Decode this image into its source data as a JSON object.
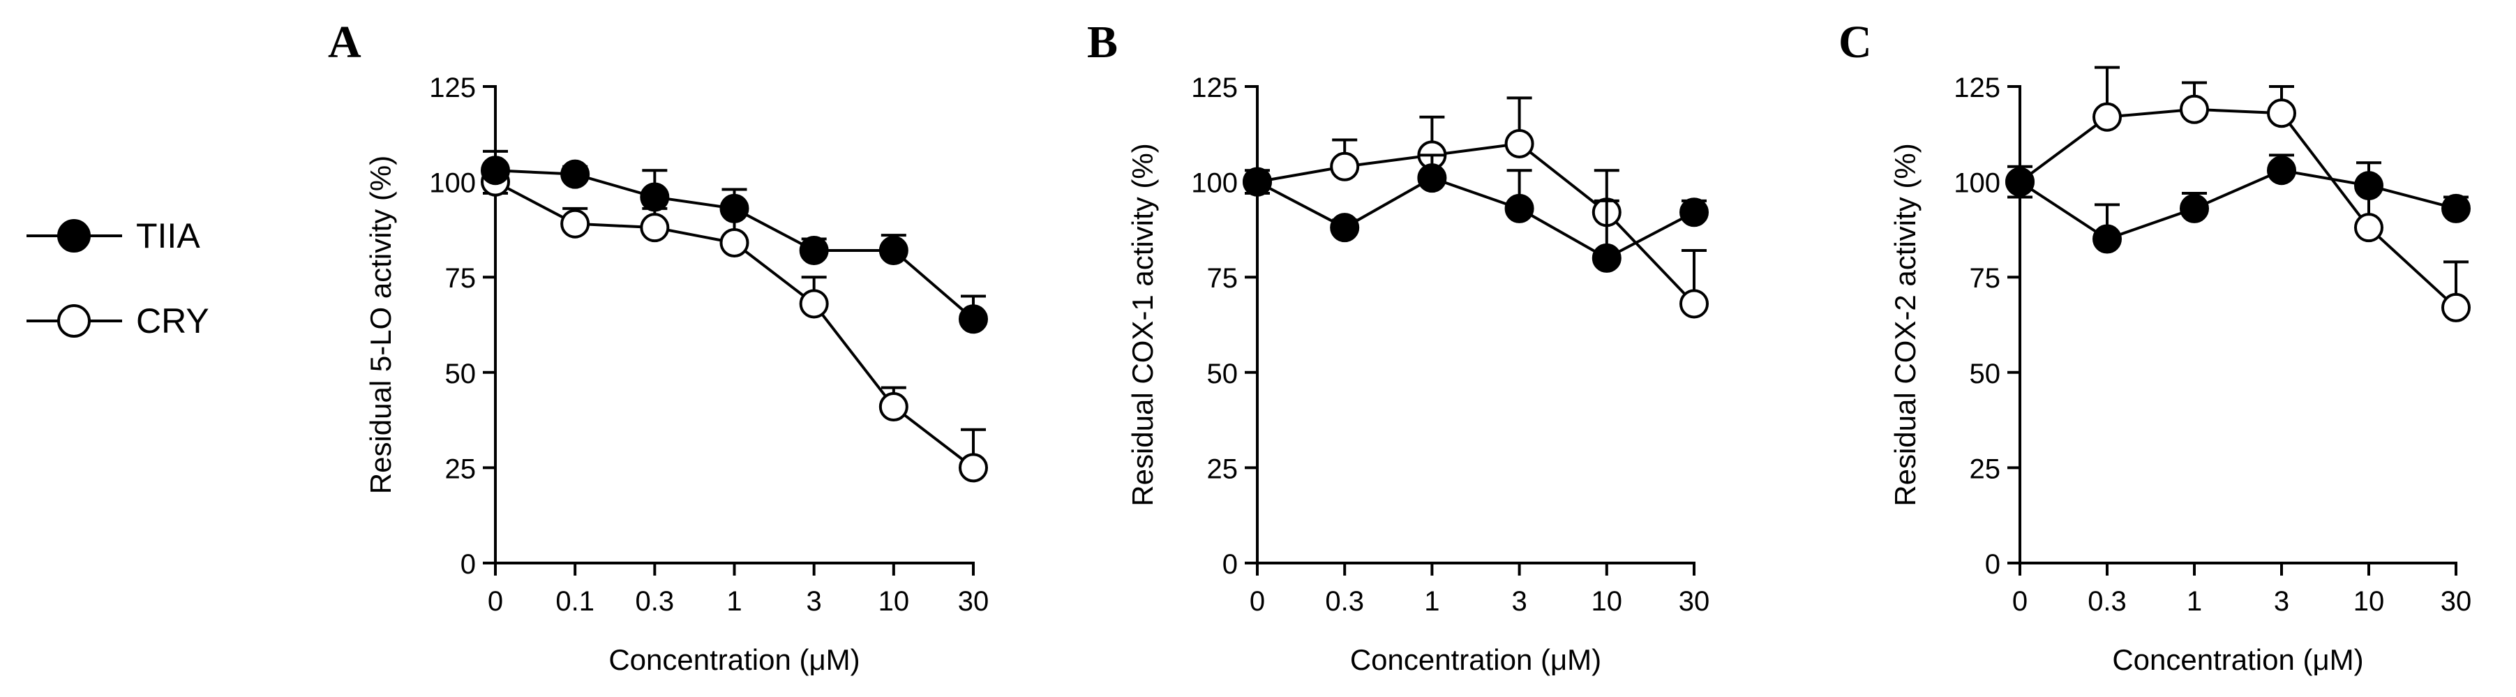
{
  "legend": [
    {
      "label": "TIIA",
      "marker": "filled"
    },
    {
      "label": "CRY",
      "marker": "open"
    }
  ],
  "colors": {
    "stroke": "#000000",
    "filled": "#000000",
    "open": "#ffffff"
  },
  "chart_data": [
    {
      "type": "line",
      "panel": "A",
      "xlabel": "Concentration (μM)",
      "ylabel": "Residual 5-LO activity (%)",
      "categories": [
        "0",
        "0.1",
        "0.3",
        "1",
        "3",
        "10",
        "30"
      ],
      "ylim": [
        0,
        125
      ],
      "yticks": [
        0,
        25,
        50,
        75,
        100,
        125
      ],
      "series": [
        {
          "name": "TIIA",
          "values": [
            103,
            102,
            96,
            93,
            82,
            82,
            64
          ],
          "errors": [
            5,
            2,
            7,
            5,
            3,
            4,
            6
          ]
        },
        {
          "name": "CRY",
          "values": [
            100,
            89,
            88,
            84,
            68,
            41,
            25
          ],
          "errors": [
            3,
            4,
            5,
            9,
            7,
            5,
            10
          ]
        }
      ]
    },
    {
      "type": "line",
      "panel": "B",
      "xlabel": "Concentration (μM)",
      "ylabel": "Residual COX-1 activity (%)",
      "categories": [
        "0",
        "0.3",
        "1",
        "3",
        "10",
        "30"
      ],
      "ylim": [
        0,
        125
      ],
      "yticks": [
        0,
        25,
        50,
        75,
        100,
        125
      ],
      "series": [
        {
          "name": "TIIA",
          "values": [
            100,
            88,
            101,
            93,
            80,
            92
          ],
          "errors": [
            3,
            2,
            6,
            10,
            15,
            3
          ]
        },
        {
          "name": "CRY",
          "values": [
            100,
            104,
            107,
            110,
            92,
            68
          ],
          "errors": [
            3,
            7,
            10,
            12,
            11,
            14
          ]
        }
      ]
    },
    {
      "type": "line",
      "panel": "C",
      "xlabel": "Concentration (μM)",
      "ylabel": "Residual COX-2 activity (%)",
      "categories": [
        "0",
        "0.3",
        "1",
        "3",
        "10",
        "30"
      ],
      "ylim": [
        0,
        125
      ],
      "yticks": [
        0,
        25,
        50,
        75,
        100,
        125
      ],
      "series": [
        {
          "name": "TIIA",
          "values": [
            100,
            85,
            93,
            103,
            99,
            93
          ],
          "errors": [
            4,
            9,
            4,
            4,
            6,
            3
          ]
        },
        {
          "name": "CRY",
          "values": [
            100,
            117,
            119,
            118,
            88,
            67
          ],
          "errors": [
            4,
            13,
            7,
            7,
            10,
            12
          ]
        }
      ]
    }
  ]
}
